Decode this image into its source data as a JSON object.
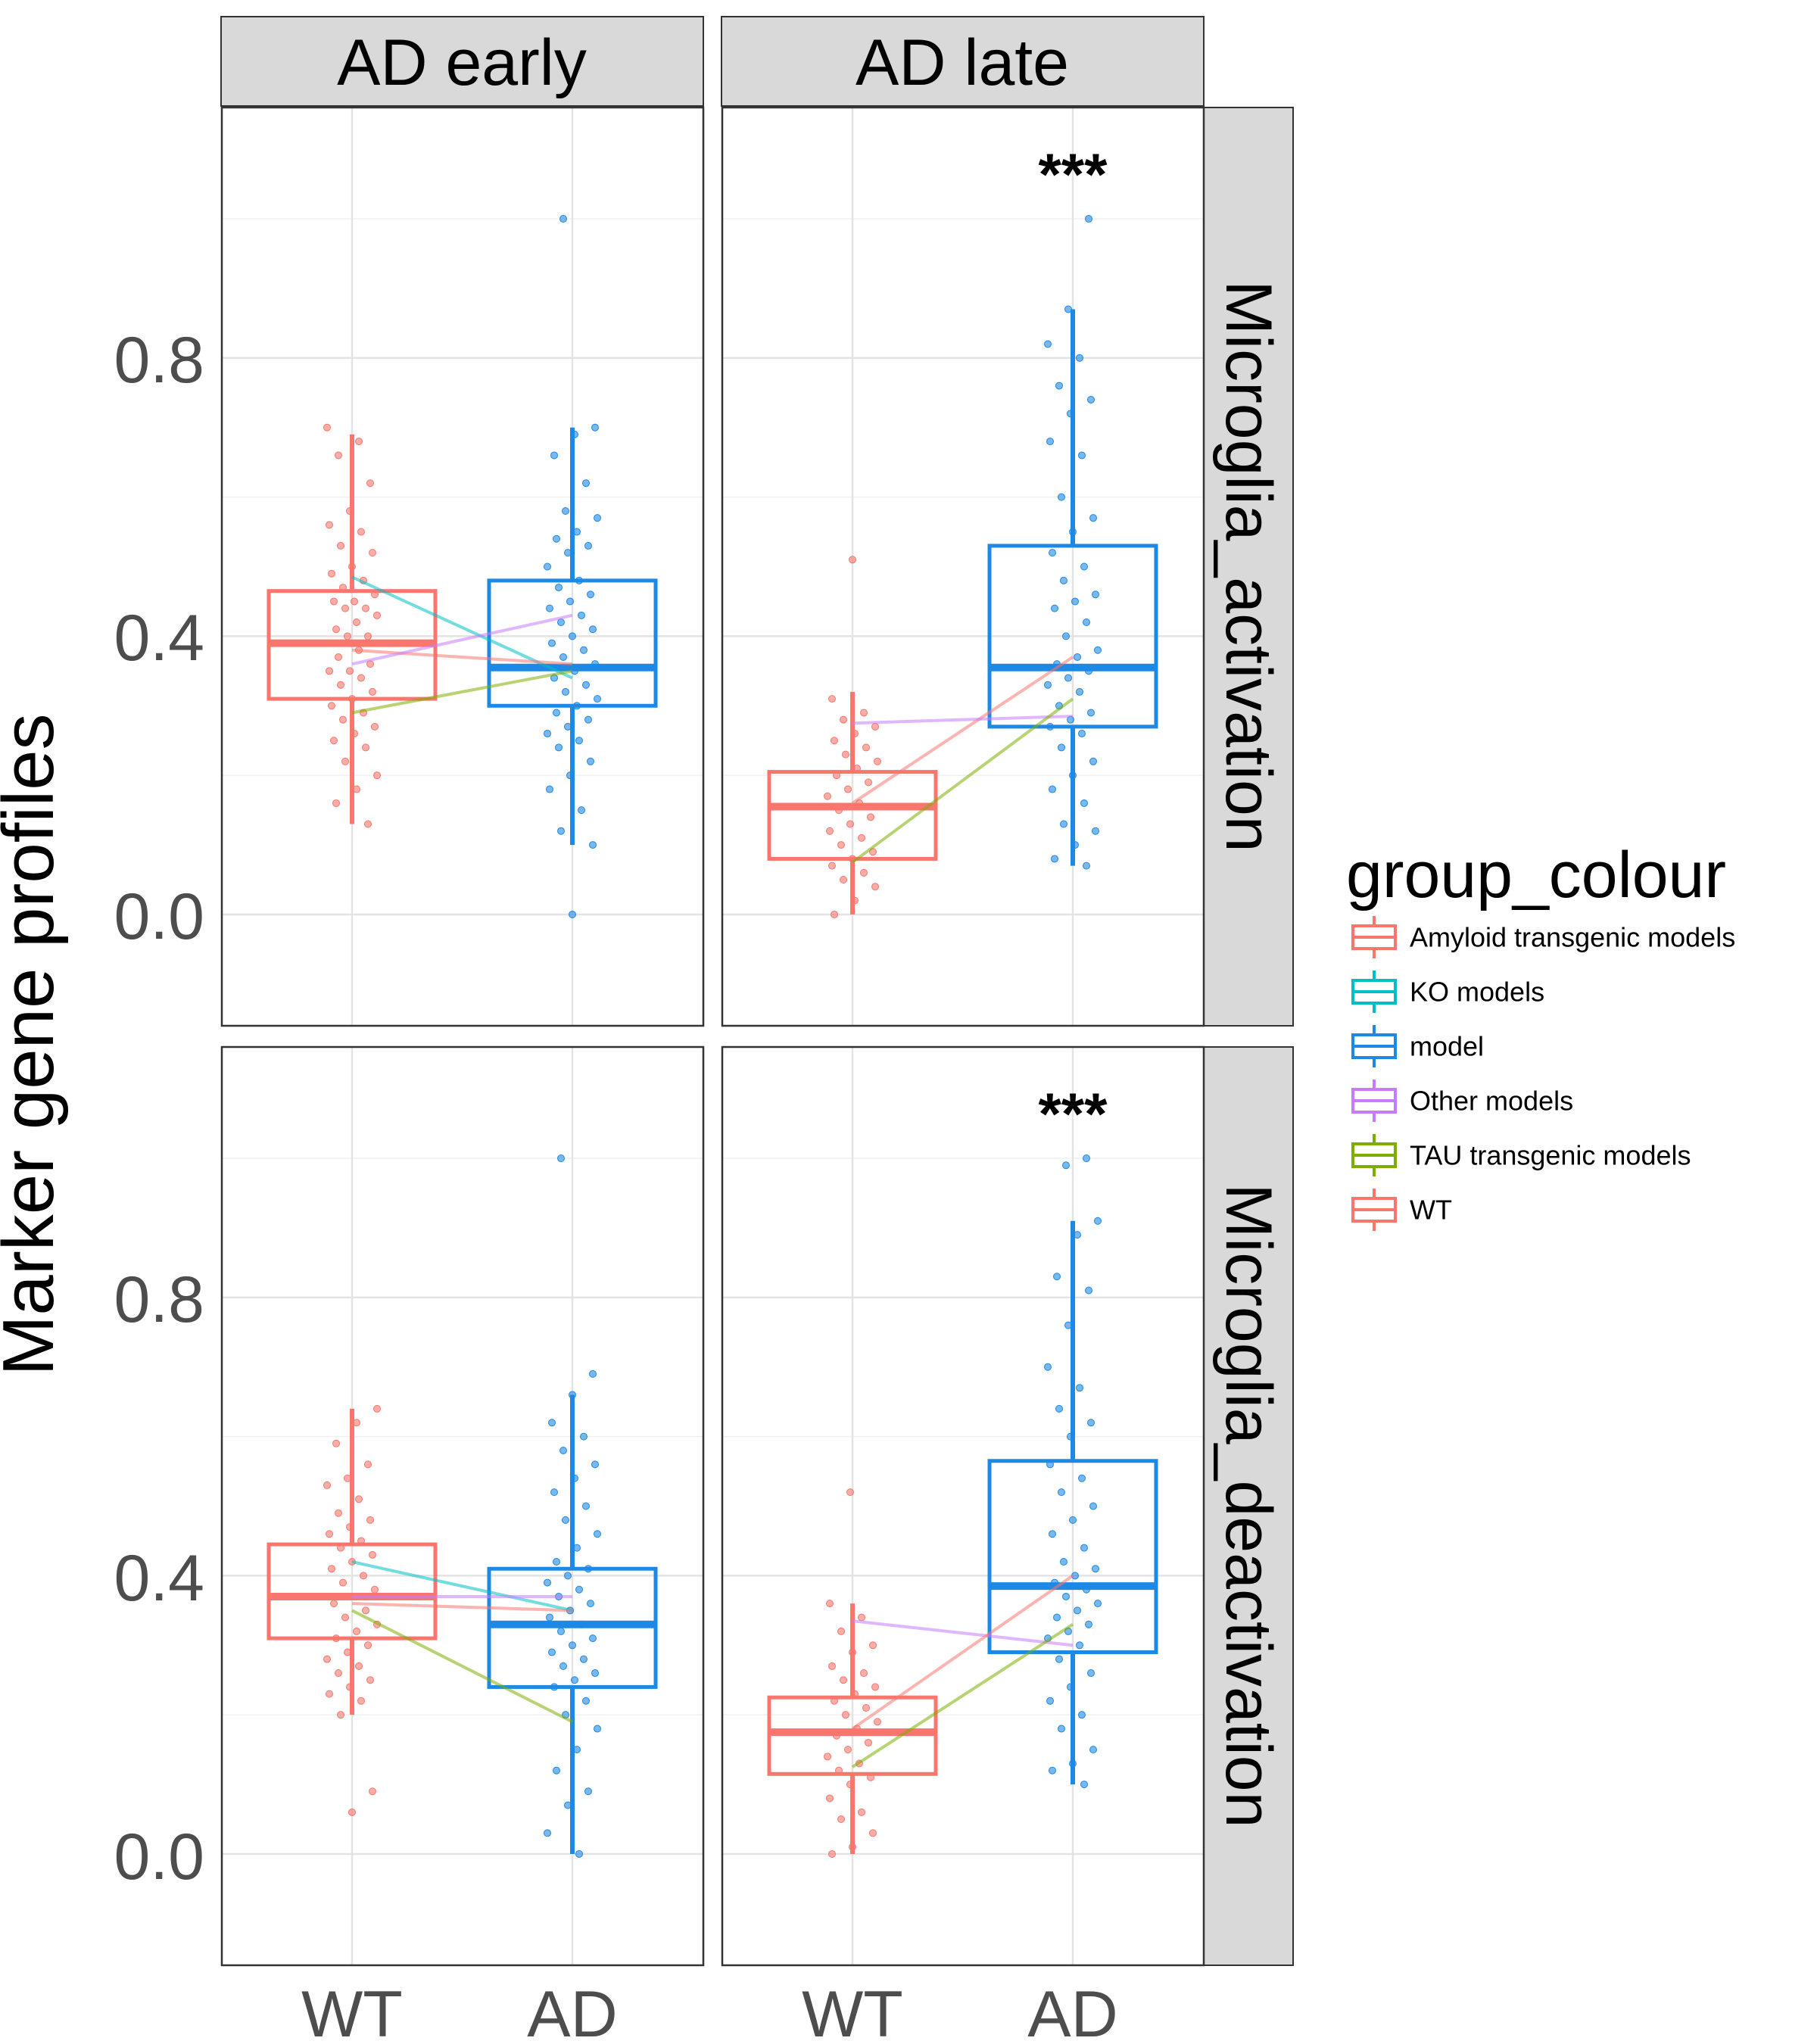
{
  "chart_data": {
    "type": "box",
    "ylabel": "Marker gene profiles",
    "categories": [
      "WT",
      "AD"
    ],
    "columns": [
      "AD early",
      "AD late"
    ],
    "rows": [
      "Microglia_activation",
      "Microglia_deactivation"
    ],
    "y_ticks": [
      "0.0",
      "0.4",
      "0.8"
    ],
    "y_tick_values": [
      0.0,
      0.4,
      0.8
    ],
    "ylim": [
      -0.16,
      1.16
    ],
    "grid": true,
    "legend": {
      "title": "group_colour",
      "placement": "right",
      "items": [
        {
          "label": "Amyloid transgenic models",
          "color": "#F8766D"
        },
        {
          "label": "KO models",
          "color": "#00BFC4"
        },
        {
          "label": "model",
          "color": "#1E88E5"
        },
        {
          "label": "Other models",
          "color": "#C77CFF"
        },
        {
          "label": "TAU transgenic models",
          "color": "#7CAE00"
        },
        {
          "label": "WT",
          "color": "#F8766D"
        }
      ]
    },
    "wt_color": "#F8766D",
    "ad_color": "#1E88E5",
    "panels": [
      {
        "column": "AD early",
        "row": "Microglia_activation",
        "significance": "",
        "boxes": {
          "WT": {
            "lower_whisker": 0.13,
            "q1": 0.31,
            "median": 0.39,
            "q3": 0.465,
            "upper_whisker": 0.69
          },
          "AD": {
            "lower_whisker": 0.1,
            "q1": 0.3,
            "median": 0.355,
            "q3": 0.48,
            "upper_whisker": 0.7
          }
        },
        "lines": [
          {
            "series": "KO models",
            "color": "#00BFC4",
            "wt": 0.485,
            "ad": 0.34
          },
          {
            "series": "Amyloid transgenic models",
            "color": "#F8766D",
            "wt": 0.38,
            "ad": 0.36
          },
          {
            "series": "Other models",
            "color": "#C77CFF",
            "wt": 0.36,
            "ad": 0.43
          },
          {
            "series": "TAU transgenic models",
            "color": "#7CAE00",
            "wt": 0.29,
            "ad": 0.35
          }
        ],
        "points": {
          "WT": [
            0.7,
            0.68,
            0.66,
            0.62,
            0.58,
            0.56,
            0.55,
            0.53,
            0.52,
            0.5,
            0.49,
            0.48,
            0.47,
            0.46,
            0.45,
            0.45,
            0.44,
            0.44,
            0.43,
            0.42,
            0.41,
            0.4,
            0.4,
            0.39,
            0.38,
            0.37,
            0.36,
            0.35,
            0.35,
            0.34,
            0.33,
            0.32,
            0.31,
            0.3,
            0.29,
            0.28,
            0.27,
            0.26,
            0.25,
            0.24,
            0.22,
            0.2,
            0.18,
            0.16,
            0.13
          ],
          "AD": [
            1.0,
            0.7,
            0.69,
            0.66,
            0.62,
            0.58,
            0.57,
            0.55,
            0.54,
            0.53,
            0.52,
            0.5,
            0.48,
            0.47,
            0.46,
            0.45,
            0.44,
            0.43,
            0.42,
            0.41,
            0.4,
            0.39,
            0.38,
            0.37,
            0.36,
            0.35,
            0.34,
            0.33,
            0.32,
            0.31,
            0.3,
            0.29,
            0.28,
            0.27,
            0.26,
            0.25,
            0.24,
            0.22,
            0.2,
            0.18,
            0.15,
            0.12,
            0.1,
            0.0
          ]
        }
      },
      {
        "column": "AD late",
        "row": "Microglia_activation",
        "significance": "***",
        "boxes": {
          "WT": {
            "lower_whisker": 0.0,
            "q1": 0.08,
            "median": 0.155,
            "q3": 0.205,
            "upper_whisker": 0.32
          },
          "AD": {
            "lower_whisker": 0.07,
            "q1": 0.27,
            "median": 0.355,
            "q3": 0.53,
            "upper_whisker": 0.87
          }
        },
        "lines": [
          {
            "series": "Amyloid transgenic models",
            "color": "#F8766D",
            "wt": 0.16,
            "ad": 0.37
          },
          {
            "series": "Other models",
            "color": "#C77CFF",
            "wt": 0.275,
            "ad": 0.285
          },
          {
            "series": "TAU transgenic models",
            "color": "#7CAE00",
            "wt": 0.075,
            "ad": 0.31
          }
        ],
        "points": {
          "WT": [
            0.51,
            0.31,
            0.29,
            0.28,
            0.27,
            0.26,
            0.25,
            0.24,
            0.23,
            0.22,
            0.21,
            0.2,
            0.19,
            0.18,
            0.17,
            0.16,
            0.15,
            0.14,
            0.13,
            0.12,
            0.11,
            0.1,
            0.09,
            0.08,
            0.07,
            0.06,
            0.05,
            0.04,
            0.02,
            0.0
          ],
          "AD": [
            1.0,
            0.87,
            0.82,
            0.8,
            0.76,
            0.74,
            0.72,
            0.68,
            0.66,
            0.6,
            0.57,
            0.55,
            0.52,
            0.5,
            0.48,
            0.46,
            0.45,
            0.44,
            0.42,
            0.4,
            0.38,
            0.37,
            0.36,
            0.35,
            0.34,
            0.33,
            0.32,
            0.3,
            0.29,
            0.28,
            0.27,
            0.26,
            0.24,
            0.22,
            0.2,
            0.18,
            0.16,
            0.13,
            0.12,
            0.1,
            0.08,
            0.07
          ]
        }
      },
      {
        "column": "AD early",
        "row": "Microglia_deactivation",
        "significance": "",
        "boxes": {
          "WT": {
            "lower_whisker": 0.2,
            "q1": 0.31,
            "median": 0.37,
            "q3": 0.445,
            "upper_whisker": 0.64
          },
          "AD": {
            "lower_whisker": 0.0,
            "q1": 0.24,
            "median": 0.33,
            "q3": 0.41,
            "upper_whisker": 0.66
          }
        },
        "lines": [
          {
            "series": "KO models",
            "color": "#00BFC4",
            "wt": 0.42,
            "ad": 0.35
          },
          {
            "series": "Amyloid transgenic models",
            "color": "#F8766D",
            "wt": 0.36,
            "ad": 0.35
          },
          {
            "series": "Other models",
            "color": "#C77CFF",
            "wt": 0.37,
            "ad": 0.37
          },
          {
            "series": "TAU transgenic models",
            "color": "#7CAE00",
            "wt": 0.35,
            "ad": 0.19
          }
        ],
        "points": {
          "WT": [
            0.64,
            0.62,
            0.59,
            0.56,
            0.54,
            0.53,
            0.51,
            0.49,
            0.48,
            0.47,
            0.46,
            0.45,
            0.44,
            0.43,
            0.42,
            0.41,
            0.4,
            0.39,
            0.38,
            0.37,
            0.36,
            0.35,
            0.34,
            0.33,
            0.32,
            0.31,
            0.3,
            0.29,
            0.28,
            0.27,
            0.26,
            0.25,
            0.24,
            0.23,
            0.22,
            0.2,
            0.09,
            0.06
          ],
          "AD": [
            1.0,
            0.69,
            0.66,
            0.62,
            0.6,
            0.58,
            0.56,
            0.54,
            0.52,
            0.5,
            0.48,
            0.46,
            0.44,
            0.42,
            0.41,
            0.4,
            0.39,
            0.38,
            0.37,
            0.36,
            0.35,
            0.34,
            0.33,
            0.32,
            0.31,
            0.3,
            0.29,
            0.28,
            0.27,
            0.26,
            0.25,
            0.24,
            0.22,
            0.2,
            0.18,
            0.15,
            0.12,
            0.09,
            0.07,
            0.03,
            0.0
          ]
        }
      },
      {
        "column": "AD late",
        "row": "Microglia_deactivation",
        "significance": "***",
        "boxes": {
          "WT": {
            "lower_whisker": 0.0,
            "q1": 0.115,
            "median": 0.175,
            "q3": 0.225,
            "upper_whisker": 0.36
          },
          "AD": {
            "lower_whisker": 0.1,
            "q1": 0.29,
            "median": 0.385,
            "q3": 0.565,
            "upper_whisker": 0.91
          }
        },
        "lines": [
          {
            "series": "Other models",
            "color": "#C77CFF",
            "wt": 0.335,
            "ad": 0.3
          },
          {
            "series": "Amyloid transgenic models",
            "color": "#F8766D",
            "wt": 0.18,
            "ad": 0.4
          },
          {
            "series": "TAU transgenic models",
            "color": "#7CAE00",
            "wt": 0.125,
            "ad": 0.33
          }
        ],
        "points": {
          "WT": [
            0.52,
            0.36,
            0.34,
            0.32,
            0.3,
            0.29,
            0.27,
            0.26,
            0.25,
            0.24,
            0.23,
            0.22,
            0.21,
            0.2,
            0.19,
            0.18,
            0.17,
            0.16,
            0.15,
            0.14,
            0.13,
            0.12,
            0.11,
            0.1,
            0.08,
            0.06,
            0.05,
            0.03,
            0.01,
            0.0
          ],
          "AD": [
            1.0,
            0.99,
            0.91,
            0.89,
            0.83,
            0.81,
            0.76,
            0.7,
            0.67,
            0.64,
            0.62,
            0.6,
            0.56,
            0.54,
            0.52,
            0.5,
            0.48,
            0.46,
            0.44,
            0.42,
            0.41,
            0.4,
            0.39,
            0.38,
            0.37,
            0.36,
            0.35,
            0.34,
            0.33,
            0.32,
            0.31,
            0.3,
            0.28,
            0.26,
            0.24,
            0.22,
            0.2,
            0.18,
            0.15,
            0.13,
            0.12,
            0.1
          ]
        }
      }
    ]
  }
}
